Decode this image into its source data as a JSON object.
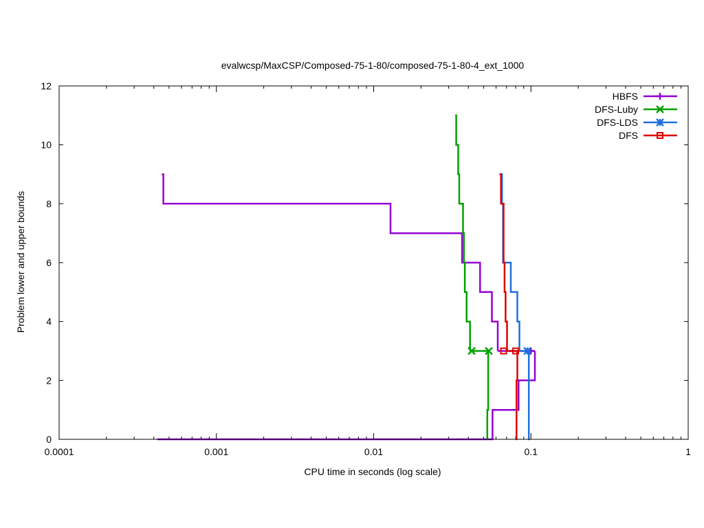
{
  "chart_data": {
    "type": "line",
    "title": "evalwcsp/MaxCSP/Composed-75-1-80/composed-75-1-80-4_ext_1000",
    "xlabel": "CPU time in seconds (log scale)",
    "ylabel": "Problem lower and upper bounds",
    "xscale": "log",
    "xlim": [
      0.0001,
      1
    ],
    "ylim": [
      0,
      12
    ],
    "x_ticks": [
      {
        "value": 0.0001,
        "label": "0.0001"
      },
      {
        "value": 0.001,
        "label": "0.001"
      },
      {
        "value": 0.01,
        "label": "0.01"
      },
      {
        "value": 0.1,
        "label": "0.1"
      },
      {
        "value": 1,
        "label": "1"
      }
    ],
    "y_ticks": [
      {
        "value": 0,
        "label": "0"
      },
      {
        "value": 2,
        "label": "2"
      },
      {
        "value": 4,
        "label": "4"
      },
      {
        "value": 6,
        "label": "6"
      },
      {
        "value": 8,
        "label": "8"
      },
      {
        "value": 10,
        "label": "10"
      },
      {
        "value": 12,
        "label": "12"
      }
    ],
    "grid": false,
    "legend_position": "top-right",
    "series": [
      {
        "name": "HBFS",
        "color": "#9400d3",
        "marker": "plus",
        "upper": [
          [
            0.00045,
            9
          ],
          [
            0.00046,
            8
          ],
          [
            0.0128,
            7
          ],
          [
            0.0365,
            6
          ],
          [
            0.0475,
            5
          ],
          [
            0.0565,
            4
          ],
          [
            0.0615,
            3
          ]
        ],
        "lower": [
          [
            0.00042,
            0
          ],
          [
            0.057,
            1
          ],
          [
            0.0835,
            2
          ],
          [
            0.106,
            3
          ]
        ],
        "markers": [
          [
            0.1,
            3
          ]
        ]
      },
      {
        "name": "DFS-Luby",
        "color": "#00a000",
        "marker": "x",
        "upper": [
          [
            0.033,
            11
          ],
          [
            0.0335,
            10
          ],
          [
            0.0345,
            9
          ],
          [
            0.035,
            8
          ],
          [
            0.037,
            7
          ],
          [
            0.0375,
            6
          ],
          [
            0.038,
            5
          ],
          [
            0.039,
            4
          ],
          [
            0.041,
            3
          ]
        ],
        "lower": [
          [
            0.0525,
            0
          ],
          [
            0.0528,
            1
          ],
          [
            0.0535,
            3
          ]
        ],
        "markers": [
          [
            0.042,
            3
          ],
          [
            0.054,
            3
          ]
        ]
      },
      {
        "name": "DFS-LDS",
        "color": "#1e6fe0",
        "marker": "star",
        "upper": [
          [
            0.063,
            9
          ],
          [
            0.064,
            9
          ],
          [
            0.0655,
            8
          ],
          [
            0.0665,
            6
          ],
          [
            0.0745,
            5
          ],
          [
            0.082,
            4
          ],
          [
            0.0845,
            3
          ]
        ],
        "lower": [
          [
            0.0962,
            0
          ],
          [
            0.097,
            3
          ]
        ],
        "markers": [
          [
            0.095,
            3
          ]
        ]
      },
      {
        "name": "DFS",
        "color": "#e00000",
        "marker": "square",
        "upper": [
          [
            0.0635,
            9
          ],
          [
            0.0645,
            8
          ],
          [
            0.067,
            6
          ],
          [
            0.068,
            5
          ],
          [
            0.069,
            4
          ],
          [
            0.0705,
            3
          ]
        ],
        "lower": [
          [
            0.0805,
            0
          ],
          [
            0.081,
            2
          ],
          [
            0.082,
            3
          ]
        ],
        "markers": [
          [
            0.067,
            3
          ],
          [
            0.08,
            3
          ]
        ]
      }
    ]
  }
}
